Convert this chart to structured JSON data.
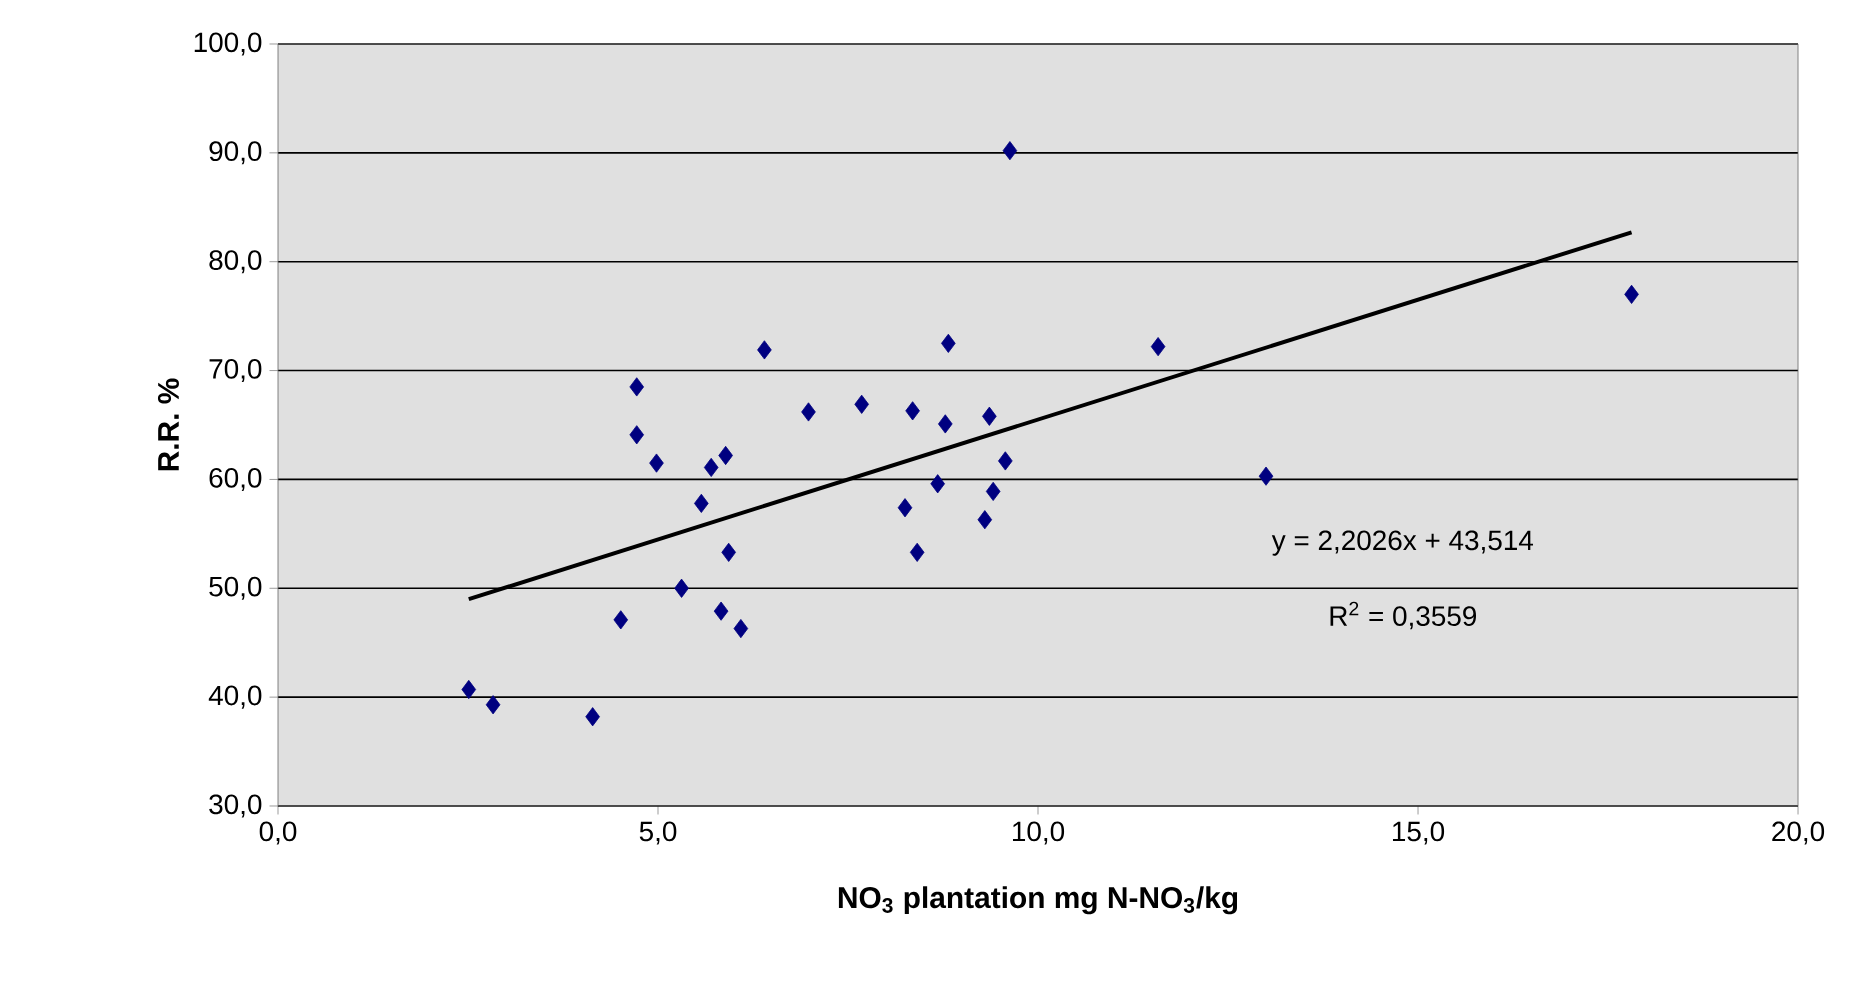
{
  "chart_data": {
    "type": "scatter",
    "xlabel": "NO$_{3}$ plantation mg N-NO$_{3}$/kg",
    "ylabel": "R.R. %",
    "x": [
      9.63,
      2.51,
      2.83,
      4.14,
      4.51,
      4.72,
      4.72,
      4.98,
      5.31,
      5.57,
      5.7,
      5.89,
      5.83,
      5.93,
      6.09,
      6.4,
      6.98,
      7.68,
      8.35,
      8.78,
      8.82,
      8.25,
      8.41,
      8.68,
      9.36,
      9.57,
      9.41,
      9.3,
      13.0,
      11.58,
      17.81
    ],
    "series": [
      {
        "color": "#000080",
        "marker": "diamond",
        "values": [
          90.2,
          40.7,
          39.3,
          38.2,
          47.1,
          68.5,
          64.1,
          61.5,
          50.0,
          57.8,
          61.1,
          62.2,
          47.9,
          53.3,
          46.3,
          71.9,
          66.2,
          66.9,
          66.3,
          65.1,
          72.5,
          57.4,
          53.3,
          59.6,
          65.8,
          61.7,
          58.9,
          56.3,
          60.3,
          72.2,
          77.0
        ]
      },
      {
        "type": "line",
        "color": "#000000",
        "marker": "none",
        "line_style": "solid",
        "x": [
          2.51,
          17.81
        ],
        "values": [
          49.0,
          82.7
        ]
      }
    ],
    "annotations": [
      "y = 2,2026x + 43,514",
      "R$^{2}$ = 0,3559"
    ],
    "xlim": [
      0,
      20
    ],
    "ylim": [
      30,
      100
    ],
    "xticks": [
      {
        "value": 0,
        "label": "0,0"
      },
      {
        "value": 5,
        "label": "5,0"
      },
      {
        "value": 10,
        "label": "10,0"
      },
      {
        "value": 15,
        "label": "15,0"
      },
      {
        "value": 20,
        "label": "20,0"
      }
    ],
    "yticks": [
      {
        "value": 30,
        "label": "30,0"
      },
      {
        "value": 40,
        "label": "40,0"
      },
      {
        "value": 50,
        "label": "50,0"
      },
      {
        "value": 60,
        "label": "60,0"
      },
      {
        "value": 70,
        "label": "70,0"
      },
      {
        "value": 80,
        "label": "80,0"
      },
      {
        "value": 90,
        "label": "90,0"
      },
      {
        "value": 100,
        "label": "100,0"
      }
    ],
    "grid": "y"
  }
}
